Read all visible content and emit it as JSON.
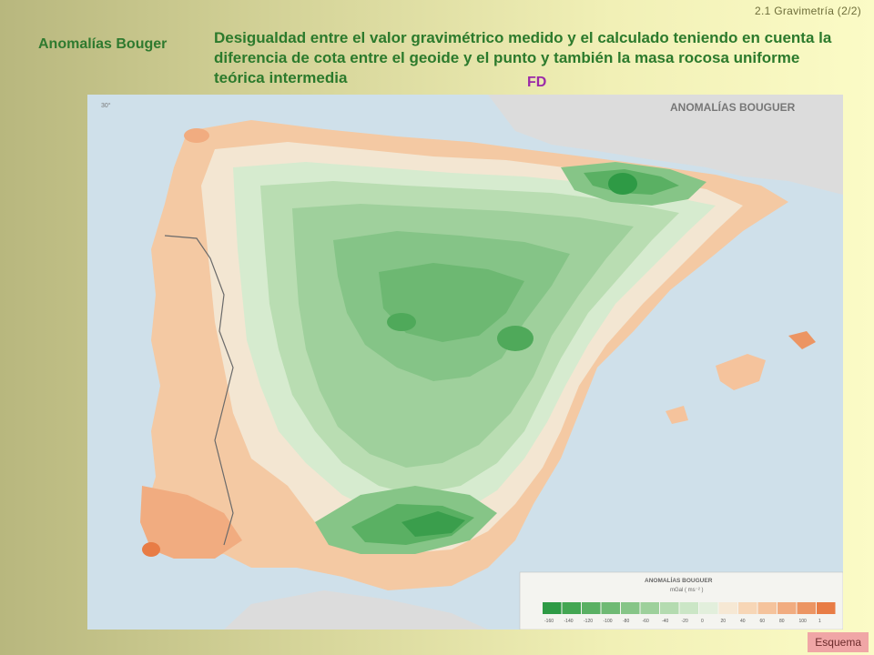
{
  "header": {
    "breadcrumb": "2.1  Gravimetría (2/2)",
    "side_title": "Anomalías Bouger",
    "description": "Desigualdad entre el valor gravimétrico medido y el calculado teniendo en cuenta la diferencia de cota entre el geoide y el punto y también la masa rocosa uniforme teórica intermedia",
    "fd_label": "FD"
  },
  "map": {
    "title": "ANOMALÍAS BOUGUER",
    "lat_label": "30°",
    "legend": {
      "title": "ANOMALÍAS BOUGUER",
      "unit": "mGal ( ms⁻² )",
      "ticks": [
        "-160",
        "-140",
        "-120",
        "-100",
        "-80",
        "-60",
        "-40",
        "-20",
        "0",
        "20",
        "40",
        "60",
        "80",
        "100",
        "1"
      ],
      "colors": [
        "#2e9a45",
        "#43a652",
        "#5ab063",
        "#6fba74",
        "#86c587",
        "#9dd09b",
        "#b4dbb0",
        "#cbe6c6",
        "#e2efdc",
        "#f6e8d4",
        "#f7d6b6",
        "#f5c39c",
        "#f1ac80",
        "#ec9563",
        "#e87c45"
      ]
    }
  },
  "nav": {
    "esquema_label": "Esquema"
  }
}
